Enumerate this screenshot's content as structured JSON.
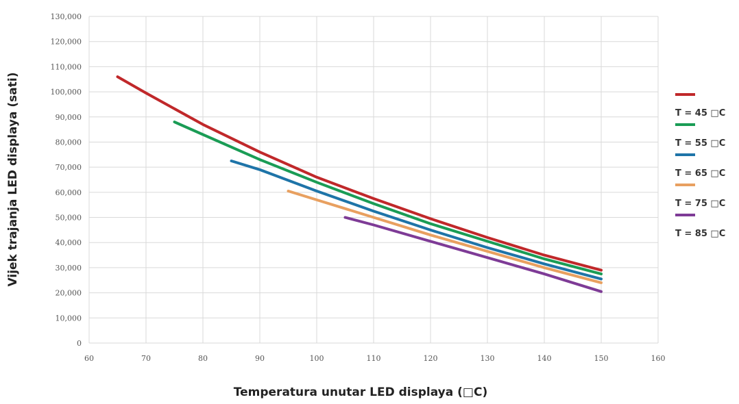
{
  "chart_data": {
    "type": "line",
    "title": "",
    "xlabel": "Temperatura unutar LED displaya (□C)",
    "ylabel": "Vijek trajanja LED displaya (sati)",
    "xlim": [
      60,
      160
    ],
    "ylim": [
      0,
      130000
    ],
    "xticks": [
      60,
      70,
      80,
      90,
      100,
      110,
      120,
      130,
      140,
      150,
      160
    ],
    "yticks": [
      0,
      10000,
      20000,
      30000,
      40000,
      50000,
      60000,
      70000,
      80000,
      90000,
      100000,
      110000,
      120000,
      130000
    ],
    "xtick_labels": [
      "60",
      "70",
      "80",
      "90",
      "100",
      "110",
      "120",
      "130",
      "140",
      "150",
      "160"
    ],
    "ytick_labels": [
      "0",
      "10,000",
      "20,000",
      "30,000",
      "40,000",
      "50,000",
      "60,000",
      "70,000",
      "80,000",
      "90,000",
      "100,000",
      "110,000",
      "120,000",
      "130,000"
    ],
    "grid": true,
    "legend_position": "right",
    "series": [
      {
        "name": "T = 45 □C",
        "color": "#c0282a",
        "x": [
          65,
          70,
          80,
          90,
          100,
          110,
          120,
          130,
          140,
          150
        ],
        "y": [
          106000,
          99500,
          87000,
          76000,
          66000,
          57500,
          49500,
          42000,
          35000,
          29000
        ]
      },
      {
        "name": "T = 55 □C",
        "color": "#1a9c55",
        "x": [
          75,
          80,
          90,
          100,
          110,
          120,
          130,
          140,
          150
        ],
        "y": [
          88000,
          83000,
          73000,
          64000,
          55500,
          47500,
          40500,
          33500,
          27500
        ]
      },
      {
        "name": "T = 65 □C",
        "color": "#1e74a8",
        "x": [
          85,
          90,
          100,
          110,
          120,
          130,
          140,
          150
        ],
        "y": [
          72500,
          69000,
          60500,
          52500,
          45000,
          38000,
          31500,
          25500
        ]
      },
      {
        "name": "T = 75 □C",
        "color": "#e8a060",
        "x": [
          95,
          100,
          110,
          120,
          130,
          140,
          150
        ],
        "y": [
          60500,
          57000,
          50000,
          43000,
          36500,
          30000,
          24000
        ]
      },
      {
        "name": "T = 85 □C",
        "color": "#7e3b96",
        "x": [
          105,
          110,
          120,
          130,
          140,
          150
        ],
        "y": [
          50000,
          47000,
          40500,
          34000,
          27500,
          20500
        ]
      }
    ]
  }
}
